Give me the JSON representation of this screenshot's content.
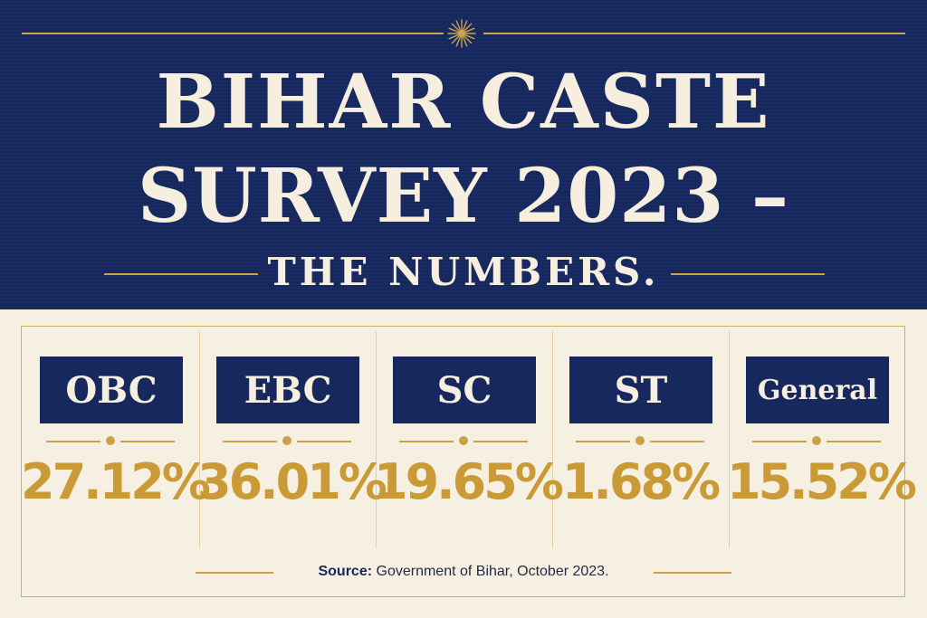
{
  "header": {
    "title_line1": "BIHAR CASTE",
    "title_line2": "SURVEY 2023 –",
    "subtitle": "THE NUMBERS."
  },
  "categories": [
    {
      "label": "OBC",
      "value": "27.12%"
    },
    {
      "label": "EBC",
      "value": "36.01%"
    },
    {
      "label": "SC",
      "value": "19.65%"
    },
    {
      "label": "ST",
      "value": "1.68%"
    },
    {
      "label": "General",
      "value": "15.52%"
    }
  ],
  "footer": {
    "source_label": "Source:",
    "source_text": " Government of Bihar, October 2023."
  },
  "colors": {
    "navy": "#16285e",
    "gold": "#c99a36",
    "cream": "#f6f0e3"
  }
}
